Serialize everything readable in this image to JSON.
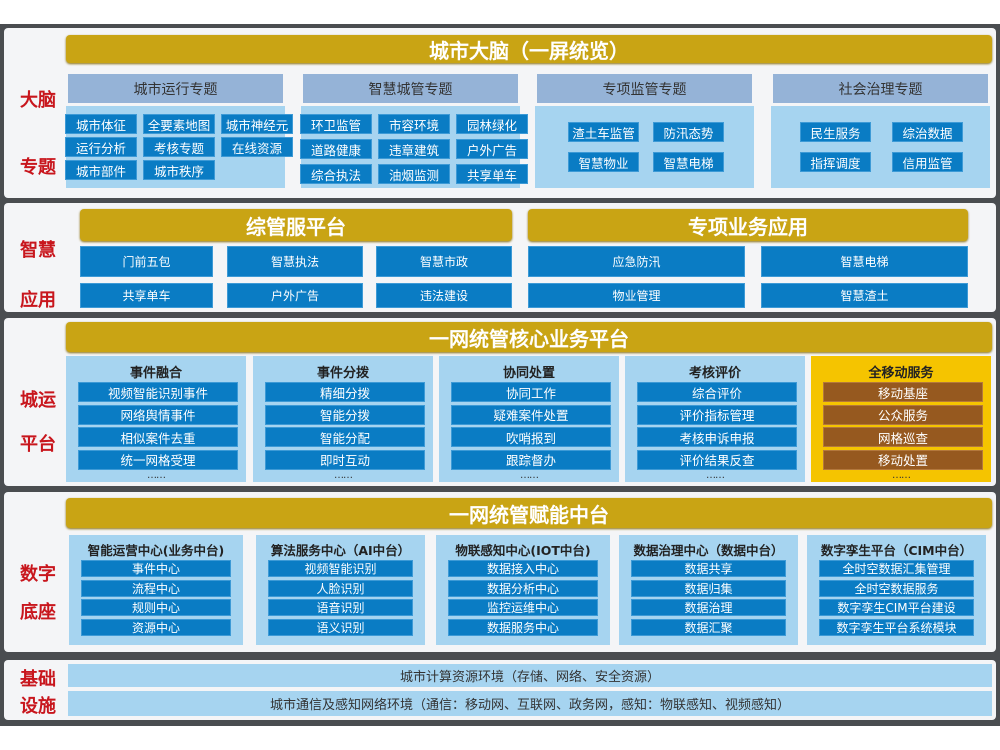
{
  "brain": {
    "side_labels": [
      "大脑",
      "专题"
    ],
    "title": "城市大脑（一屏统览）",
    "columns": [
      {
        "header": "城市运行专题",
        "items": [
          "城市体征",
          "全要素地图",
          "城市神经元",
          "运行分析",
          "考核专题",
          "在线资源",
          "城市部件",
          "城市秩序"
        ]
      },
      {
        "header": "智慧城管专题",
        "items": [
          "环卫监管",
          "市容环境",
          "园林绿化",
          "道路健康",
          "违章建筑",
          "户外广告",
          "综合执法",
          "油烟监测",
          "共享单车"
        ]
      },
      {
        "header": "专项监管专题",
        "items": [
          "渣土车监管",
          "防汛态势",
          "智慧物业",
          "智慧电梯"
        ]
      },
      {
        "header": "社会治理专题",
        "items": [
          "民生服务",
          "综治数据",
          "指挥调度",
          "信用监管"
        ]
      }
    ]
  },
  "apps": {
    "side_labels": [
      "智慧",
      "应用"
    ],
    "groups": [
      {
        "title": "综管服平台",
        "items": [
          "门前五包",
          "智慧执法",
          "智慧市政",
          "共享单车",
          "户外广告",
          "违法建设"
        ]
      },
      {
        "title": "专项业务应用",
        "items": [
          "应急防汛",
          "智慧电梯",
          "物业管理",
          "智慧渣土"
        ]
      }
    ]
  },
  "core": {
    "side_labels": [
      "城运",
      "平台"
    ],
    "title": "一网统管核心业务平台",
    "columns": [
      {
        "title": "事件融合",
        "items": [
          "视频智能识别事件",
          "网络舆情事件",
          "相似案件去重",
          "统一网格受理"
        ],
        "more": "……"
      },
      {
        "title": "事件分拨",
        "items": [
          "精细分拨",
          "智能分拨",
          "智能分配",
          "即时互动"
        ],
        "more": "……"
      },
      {
        "title": "协同处置",
        "items": [
          "协同工作",
          "疑难案件处置",
          "吹哨报到",
          "跟踪督办"
        ],
        "more": "……"
      },
      {
        "title": "考核评价",
        "items": [
          "综合评价",
          "评价指标管理",
          "考核申诉申报",
          "评价结果反查"
        ],
        "more": "……"
      },
      {
        "title": "全移动服务",
        "items": [
          "移动基座",
          "公众服务",
          "网格巡查",
          "移动处置"
        ],
        "more": "……",
        "highlight": true
      }
    ]
  },
  "base": {
    "side_labels": [
      "数字",
      "底座"
    ],
    "title": "一网统管赋能中台",
    "columns": [
      {
        "title": "智能运营中心(业务中台)",
        "items": [
          "事件中心",
          "流程中心",
          "规则中心",
          "资源中心"
        ]
      },
      {
        "title": "算法服务中心（AI中台）",
        "items": [
          "视频智能识别",
          "人脸识别",
          "语音识别",
          "语义识别"
        ]
      },
      {
        "title": "物联感知中心(IOT中台)",
        "items": [
          "数据接入中心",
          "数据分析中心",
          "监控运维中心",
          "数据服务中心"
        ]
      },
      {
        "title": "数据治理中心（数据中台）",
        "items": [
          "数据共享",
          "数据归集",
          "数据治理",
          "数据汇聚"
        ]
      },
      {
        "title": "数字孪生平台（CIM中台）",
        "items": [
          "全时空数据汇集管理",
          "全时空数据服务",
          "数字孪生CIM平台建设",
          "数字孪生平台系统模块"
        ]
      }
    ]
  },
  "infra": {
    "side_labels": [
      "基础",
      "设施"
    ],
    "rows": [
      "城市计算资源环境（存储、网络、安全资源）",
      "城市通信及感知网络环境（通信：移动网、互联网、政务网，感知：物联感知、视频感知）"
    ]
  },
  "colors": {
    "gold": "#c9a414",
    "button": "#0a7cc4",
    "header": "#95b3d7",
    "panel_body": "#a6d4f0",
    "highlight": "#f5c400",
    "brown": "#96591f",
    "side_label": "#c8161d"
  }
}
